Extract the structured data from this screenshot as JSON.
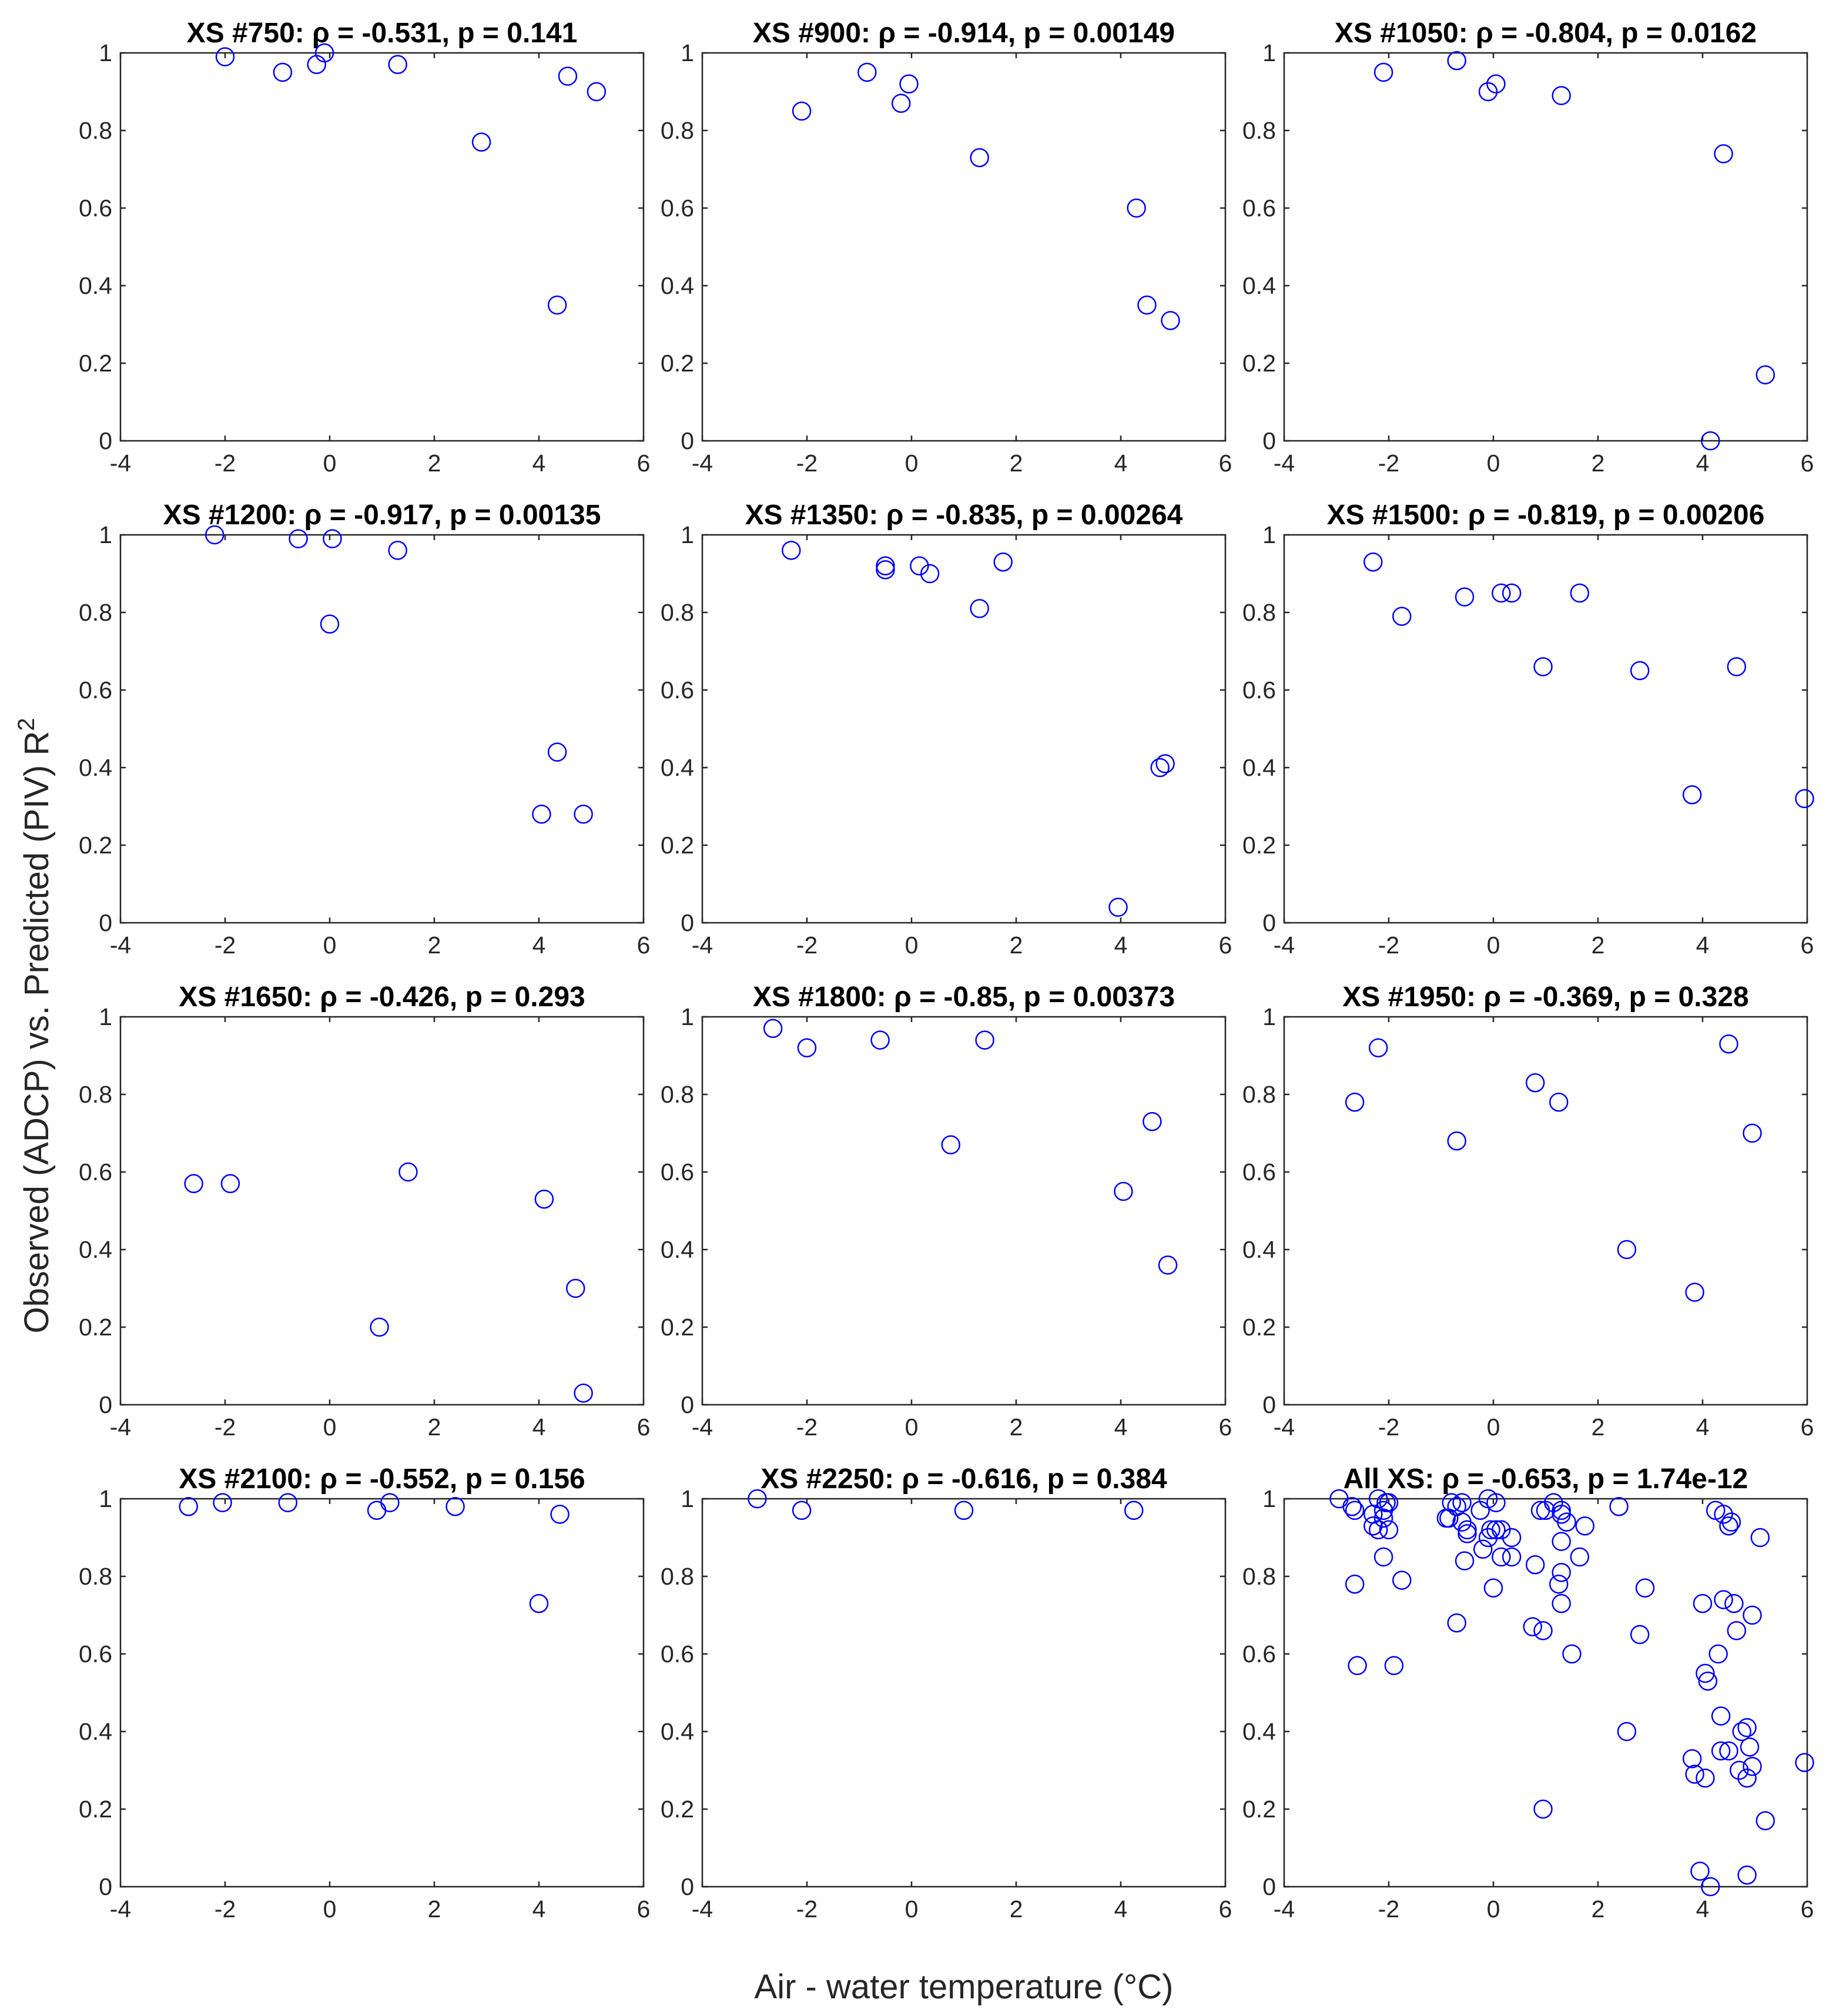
{
  "figure": {
    "xlabel": "Air - water temperature (°C)",
    "ylabel_main": "Observed (ADCP) vs. Predicted (PIV) R",
    "ylabel_sup": "2",
    "marker_color": "#0000ff"
  },
  "chart_data": [
    {
      "type": "scatter",
      "title": "XS #750: ρ = -0.531, p = 0.141",
      "xlim": [
        -4,
        6
      ],
      "ylim": [
        0,
        1
      ],
      "xticks": [
        -4,
        -2,
        0,
        2,
        4,
        6
      ],
      "yticks": [
        0,
        0.2,
        0.4,
        0.6,
        0.8,
        1
      ],
      "points": [
        [
          -2.0,
          0.99
        ],
        [
          -0.9,
          0.95
        ],
        [
          -0.25,
          0.97
        ],
        [
          -0.1,
          1.0
        ],
        [
          1.3,
          0.97
        ],
        [
          2.9,
          0.77
        ],
        [
          4.35,
          0.35
        ],
        [
          4.55,
          0.94
        ],
        [
          5.1,
          0.9
        ]
      ]
    },
    {
      "type": "scatter",
      "title": "XS #900: ρ = -0.914, p = 0.00149",
      "xlim": [
        -4,
        6
      ],
      "ylim": [
        0,
        1
      ],
      "xticks": [
        -4,
        -2,
        0,
        2,
        4,
        6
      ],
      "yticks": [
        0,
        0.2,
        0.4,
        0.6,
        0.8,
        1
      ],
      "points": [
        [
          -2.1,
          0.85
        ],
        [
          -0.85,
          0.95
        ],
        [
          -0.2,
          0.87
        ],
        [
          -0.05,
          0.92
        ],
        [
          1.3,
          0.73
        ],
        [
          4.3,
          0.6
        ],
        [
          4.5,
          0.35
        ],
        [
          4.95,
          0.31
        ]
      ]
    },
    {
      "type": "scatter",
      "title": "XS #1050: ρ = -0.804, p = 0.0162",
      "xlim": [
        -4,
        6
      ],
      "ylim": [
        0,
        1
      ],
      "xticks": [
        -4,
        -2,
        0,
        2,
        4,
        6
      ],
      "yticks": [
        0,
        0.2,
        0.4,
        0.6,
        0.8,
        1
      ],
      "points": [
        [
          -2.1,
          0.95
        ],
        [
          -0.7,
          0.98
        ],
        [
          -0.1,
          0.9
        ],
        [
          0.05,
          0.92
        ],
        [
          1.3,
          0.89
        ],
        [
          4.15,
          0.0
        ],
        [
          4.4,
          0.74
        ],
        [
          5.2,
          0.17
        ]
      ]
    },
    {
      "type": "scatter",
      "title": "XS #1200: ρ = -0.917, p = 0.00135",
      "xlim": [
        -4,
        6
      ],
      "ylim": [
        0,
        1
      ],
      "xticks": [
        -4,
        -2,
        0,
        2,
        4,
        6
      ],
      "yticks": [
        0,
        0.2,
        0.4,
        0.6,
        0.8,
        1
      ],
      "points": [
        [
          -2.2,
          1.0
        ],
        [
          -0.6,
          0.99
        ],
        [
          0.0,
          0.77
        ],
        [
          0.05,
          0.99
        ],
        [
          1.3,
          0.96
        ],
        [
          4.05,
          0.28
        ],
        [
          4.35,
          0.44
        ],
        [
          4.85,
          0.28
        ]
      ]
    },
    {
      "type": "scatter",
      "title": "XS #1350: ρ = -0.835, p = 0.00264",
      "xlim": [
        -4,
        6
      ],
      "ylim": [
        0,
        1
      ],
      "xticks": [
        -4,
        -2,
        0,
        2,
        4,
        6
      ],
      "yticks": [
        0,
        0.2,
        0.4,
        0.6,
        0.8,
        1
      ],
      "points": [
        [
          -2.3,
          0.96
        ],
        [
          -0.5,
          0.91
        ],
        [
          -0.5,
          0.92
        ],
        [
          0.15,
          0.92
        ],
        [
          0.35,
          0.9
        ],
        [
          1.3,
          0.81
        ],
        [
          1.75,
          0.93
        ],
        [
          3.95,
          0.04
        ],
        [
          4.75,
          0.4
        ],
        [
          4.85,
          0.41
        ]
      ]
    },
    {
      "type": "scatter",
      "title": "XS #1500: ρ = -0.819, p = 0.00206",
      "xlim": [
        -4,
        6
      ],
      "ylim": [
        0,
        1
      ],
      "xticks": [
        -4,
        -2,
        0,
        2,
        4,
        6
      ],
      "yticks": [
        0,
        0.2,
        0.4,
        0.6,
        0.8,
        1
      ],
      "points": [
        [
          -2.3,
          0.93
        ],
        [
          -1.75,
          0.79
        ],
        [
          -0.55,
          0.84
        ],
        [
          0.15,
          0.85
        ],
        [
          0.35,
          0.85
        ],
        [
          0.95,
          0.66
        ],
        [
          1.65,
          0.85
        ],
        [
          2.8,
          0.65
        ],
        [
          3.8,
          0.33
        ],
        [
          4.65,
          0.66
        ],
        [
          5.95,
          0.32
        ]
      ]
    },
    {
      "type": "scatter",
      "title": "XS #1650: ρ = -0.426, p = 0.293",
      "xlim": [
        -4,
        6
      ],
      "ylim": [
        0,
        1
      ],
      "xticks": [
        -4,
        -2,
        0,
        2,
        4,
        6
      ],
      "yticks": [
        0,
        0.2,
        0.4,
        0.6,
        0.8,
        1
      ],
      "points": [
        [
          -2.6,
          0.57
        ],
        [
          -1.9,
          0.57
        ],
        [
          0.95,
          0.2
        ],
        [
          1.5,
          0.6
        ],
        [
          4.1,
          0.53
        ],
        [
          4.7,
          0.3
        ],
        [
          4.85,
          0.03
        ]
      ]
    },
    {
      "type": "scatter",
      "title": "XS #1800: ρ = -0.85, p = 0.00373",
      "xlim": [
        -4,
        6
      ],
      "ylim": [
        0,
        1
      ],
      "xticks": [
        -4,
        -2,
        0,
        2,
        4,
        6
      ],
      "yticks": [
        0,
        0.2,
        0.4,
        0.6,
        0.8,
        1
      ],
      "points": [
        [
          -2.65,
          0.97
        ],
        [
          -2.0,
          0.92
        ],
        [
          -0.6,
          0.94
        ],
        [
          0.75,
          0.67
        ],
        [
          1.4,
          0.94
        ],
        [
          4.05,
          0.55
        ],
        [
          4.6,
          0.73
        ],
        [
          4.9,
          0.36
        ]
      ]
    },
    {
      "type": "scatter",
      "title": "XS #1950: ρ = -0.369, p = 0.328",
      "xlim": [
        -4,
        6
      ],
      "ylim": [
        0,
        1
      ],
      "xticks": [
        -4,
        -2,
        0,
        2,
        4,
        6
      ],
      "yticks": [
        0,
        0.2,
        0.4,
        0.6,
        0.8,
        1
      ],
      "points": [
        [
          -2.65,
          0.78
        ],
        [
          -2.2,
          0.92
        ],
        [
          -0.7,
          0.68
        ],
        [
          0.8,
          0.83
        ],
        [
          1.25,
          0.78
        ],
        [
          2.55,
          0.4
        ],
        [
          3.85,
          0.29
        ],
        [
          4.5,
          0.93
        ],
        [
          4.95,
          0.7
        ]
      ]
    },
    {
      "type": "scatter",
      "title": "XS #2100: ρ = -0.552, p = 0.156",
      "xlim": [
        -4,
        6
      ],
      "ylim": [
        0,
        1
      ],
      "xticks": [
        -4,
        -2,
        0,
        2,
        4,
        6
      ],
      "yticks": [
        0,
        0.2,
        0.4,
        0.6,
        0.8,
        1
      ],
      "points": [
        [
          -2.7,
          0.98
        ],
        [
          -2.05,
          0.99
        ],
        [
          -0.8,
          0.99
        ],
        [
          0.9,
          0.97
        ],
        [
          1.15,
          0.99
        ],
        [
          2.4,
          0.98
        ],
        [
          4.0,
          0.73
        ],
        [
          4.4,
          0.96
        ]
      ]
    },
    {
      "type": "scatter",
      "title": "XS #2250: ρ = -0.616, p = 0.384",
      "xlim": [
        -4,
        6
      ],
      "ylim": [
        0,
        1
      ],
      "xticks": [
        -4,
        -2,
        0,
        2,
        4,
        6
      ],
      "yticks": [
        0,
        0.2,
        0.4,
        0.6,
        0.8,
        1
      ],
      "points": [
        [
          -2.95,
          1.0
        ],
        [
          -2.1,
          0.97
        ],
        [
          1.0,
          0.97
        ],
        [
          4.25,
          0.97
        ]
      ]
    },
    {
      "type": "scatter",
      "title": "All XS: ρ = -0.653, p = 1.74e-12",
      "xlim": [
        -4,
        6
      ],
      "ylim": [
        0,
        1
      ],
      "xticks": [
        -4,
        -2,
        0,
        2,
        4,
        6
      ],
      "yticks": [
        0,
        0.2,
        0.4,
        0.6,
        0.8,
        1
      ],
      "points": [
        [
          -2.0,
          0.99
        ],
        [
          -0.9,
          0.95
        ],
        [
          -0.25,
          0.97
        ],
        [
          -0.1,
          1.0
        ],
        [
          1.3,
          0.97
        ],
        [
          2.9,
          0.77
        ],
        [
          4.35,
          0.35
        ],
        [
          4.55,
          0.94
        ],
        [
          5.1,
          0.9
        ],
        [
          -2.1,
          0.85
        ],
        [
          -0.85,
          0.95
        ],
        [
          -0.2,
          0.87
        ],
        [
          -0.05,
          0.92
        ],
        [
          1.3,
          0.73
        ],
        [
          4.3,
          0.6
        ],
        [
          4.5,
          0.35
        ],
        [
          4.95,
          0.31
        ],
        [
          -2.1,
          0.95
        ],
        [
          -0.7,
          0.98
        ],
        [
          -0.1,
          0.9
        ],
        [
          0.05,
          0.92
        ],
        [
          1.3,
          0.89
        ],
        [
          4.15,
          0.0
        ],
        [
          4.4,
          0.74
        ],
        [
          5.2,
          0.17
        ],
        [
          -2.2,
          1.0
        ],
        [
          -0.6,
          0.99
        ],
        [
          0.0,
          0.77
        ],
        [
          0.05,
          0.99
        ],
        [
          1.3,
          0.96
        ],
        [
          4.05,
          0.28
        ],
        [
          4.35,
          0.44
        ],
        [
          4.85,
          0.28
        ],
        [
          -2.3,
          0.96
        ],
        [
          -0.5,
          0.91
        ],
        [
          -0.5,
          0.92
        ],
        [
          0.15,
          0.92
        ],
        [
          0.35,
          0.9
        ],
        [
          1.3,
          0.81
        ],
        [
          1.75,
          0.93
        ],
        [
          3.95,
          0.04
        ],
        [
          4.75,
          0.4
        ],
        [
          4.85,
          0.41
        ],
        [
          -2.3,
          0.93
        ],
        [
          -1.75,
          0.79
        ],
        [
          -0.55,
          0.84
        ],
        [
          0.15,
          0.85
        ],
        [
          0.35,
          0.85
        ],
        [
          0.95,
          0.66
        ],
        [
          1.65,
          0.85
        ],
        [
          2.8,
          0.65
        ],
        [
          3.8,
          0.33
        ],
        [
          4.65,
          0.66
        ],
        [
          5.95,
          0.32
        ],
        [
          -2.6,
          0.57
        ],
        [
          -1.9,
          0.57
        ],
        [
          0.95,
          0.2
        ],
        [
          1.5,
          0.6
        ],
        [
          4.1,
          0.53
        ],
        [
          4.7,
          0.3
        ],
        [
          4.85,
          0.03
        ],
        [
          -2.65,
          0.97
        ],
        [
          -2.0,
          0.92
        ],
        [
          -0.6,
          0.94
        ],
        [
          0.75,
          0.67
        ],
        [
          1.4,
          0.94
        ],
        [
          4.05,
          0.55
        ],
        [
          4.6,
          0.73
        ],
        [
          4.9,
          0.36
        ],
        [
          -2.65,
          0.78
        ],
        [
          -2.2,
          0.92
        ],
        [
          -0.7,
          0.68
        ],
        [
          0.8,
          0.83
        ],
        [
          1.25,
          0.78
        ],
        [
          2.55,
          0.4
        ],
        [
          3.85,
          0.29
        ],
        [
          4.5,
          0.93
        ],
        [
          4.95,
          0.7
        ],
        [
          -2.7,
          0.98
        ],
        [
          -2.05,
          0.99
        ],
        [
          -0.8,
          0.99
        ],
        [
          0.9,
          0.97
        ],
        [
          1.15,
          0.99
        ],
        [
          2.4,
          0.98
        ],
        [
          4.0,
          0.73
        ],
        [
          4.4,
          0.96
        ],
        [
          -2.95,
          1.0
        ],
        [
          -2.1,
          0.97
        ],
        [
          1.0,
          0.97
        ],
        [
          4.25,
          0.97
        ]
      ]
    }
  ]
}
